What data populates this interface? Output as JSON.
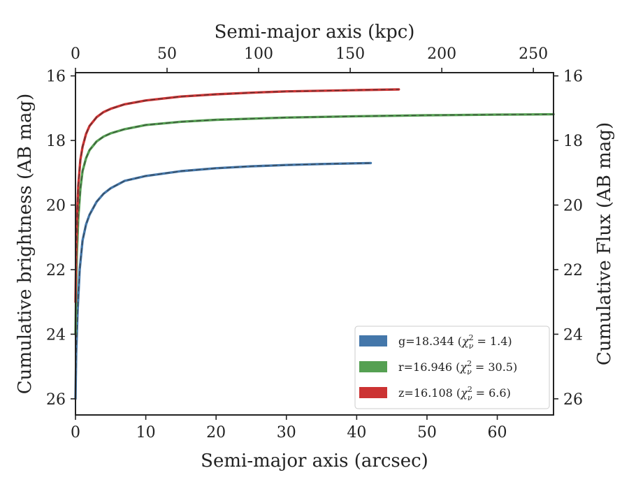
{
  "chart_data": {
    "type": "line",
    "xlabel": "Semi-major axis (arcsec)",
    "x2label": "Semi-major axis (kpc)",
    "ylabel": "Cumulative brightness (AB mag)",
    "y2label": "Cumulative Flux (AB mag)",
    "xlim": [
      0,
      68
    ],
    "x2lim": [
      0,
      261
    ],
    "ylim": [
      26.5,
      15.9
    ],
    "y_inverted": true,
    "x_ticks": [
      0,
      10,
      20,
      30,
      40,
      50,
      60
    ],
    "x2_ticks": [
      0,
      50,
      100,
      150,
      200,
      250
    ],
    "y_ticks": [
      16,
      18,
      20,
      22,
      24,
      26
    ],
    "grid": false,
    "legend_placement": "lower-right",
    "series": [
      {
        "name": "g=18.344 (χ²ᵥ = 1.4)",
        "legend": {
          "prefix": "g=18.344 (",
          "chi": "χ",
          "sup": "2",
          "sub": "ν",
          "suffix": " = 1.4)"
        },
        "color": "#4477aa",
        "x": [
          0,
          0.1,
          0.3,
          0.6,
          1,
          1.5,
          2,
          3,
          4,
          5,
          7,
          10,
          15,
          20,
          25,
          30,
          35,
          42
        ],
        "y": [
          26.0,
          24.6,
          23.3,
          22.0,
          21.1,
          20.6,
          20.3,
          19.9,
          19.65,
          19.48,
          19.25,
          19.1,
          18.95,
          18.86,
          18.8,
          18.76,
          18.73,
          18.7
        ]
      },
      {
        "name": "r=16.946 (χ²ᵥ = 30.5)",
        "legend": {
          "prefix": "r=16.946 (",
          "chi": "χ",
          "sup": "2",
          "sub": "ν",
          "suffix": " = 30.5)"
        },
        "color": "#55a052",
        "x": [
          0,
          0.1,
          0.2,
          0.4,
          0.7,
          1,
          1.5,
          2,
          3,
          4,
          5,
          7,
          10,
          15,
          20,
          30,
          40,
          50,
          60,
          68
        ],
        "y": [
          24.0,
          22.5,
          21.5,
          20.4,
          19.5,
          18.95,
          18.55,
          18.3,
          18.03,
          17.88,
          17.78,
          17.65,
          17.52,
          17.42,
          17.36,
          17.29,
          17.25,
          17.22,
          17.2,
          17.19
        ]
      },
      {
        "name": "z=16.108 (χ²ᵥ = 6.6)",
        "legend": {
          "prefix": "z=16.108 (",
          "chi": "χ",
          "sup": "2",
          "sub": "ν",
          "suffix": " = 6.6)"
        },
        "color": "#cc3333",
        "x": [
          0,
          0.1,
          0.2,
          0.4,
          0.7,
          1,
          1.5,
          2,
          3,
          4,
          5,
          7,
          10,
          15,
          20,
          25,
          30,
          35,
          40,
          46
        ],
        "y": [
          23.0,
          21.5,
          20.5,
          19.4,
          18.6,
          18.2,
          17.8,
          17.55,
          17.28,
          17.12,
          17.02,
          16.88,
          16.76,
          16.64,
          16.57,
          16.52,
          16.48,
          16.46,
          16.44,
          16.42
        ]
      }
    ]
  }
}
